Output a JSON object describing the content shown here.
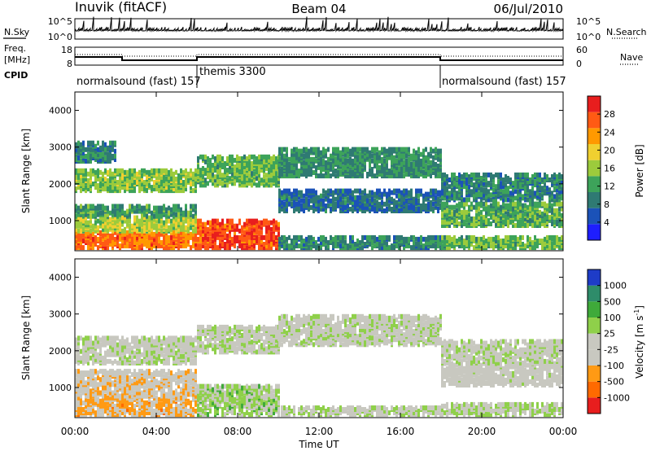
{
  "header": {
    "station": "Inuvik (fitACF)",
    "beam": "Beam 04",
    "date": "06/Jul/2010"
  },
  "top_panels": {
    "nsky_label": "N.Sky",
    "nsearch_label": "N.Search",
    "noise_ticks_left": [
      "10^5",
      "10^0"
    ],
    "noise_ticks_right": [
      "10^5",
      "10^0"
    ],
    "freq_label_line1": "Freq.",
    "freq_label_line2": "[MHz]",
    "freq_ticks": [
      "18",
      "8"
    ],
    "nave_label": "Nave",
    "nave_ticks": [
      "60",
      "0"
    ],
    "cpid_label": "CPID",
    "cpid_segments": [
      {
        "label": "normalsound (fast) 157",
        "start_hour": 0,
        "end_hour": 6
      },
      {
        "label": "themis 3300",
        "start_hour": 6,
        "end_hour": 18
      },
      {
        "label": "normalsound (fast) 157",
        "start_hour": 18,
        "end_hour": 24
      }
    ]
  },
  "chart_data": [
    {
      "type": "heatmap",
      "title": "",
      "xlabel": "Time UT",
      "ylabel": "Slant Range [km]",
      "xlim": [
        0,
        24
      ],
      "ylim": [
        180,
        4500
      ],
      "x_ticks": [
        "00:00",
        "04:00",
        "08:00",
        "12:00",
        "16:00",
        "20:00",
        "00:00"
      ],
      "y_ticks": [
        "1000",
        "2000",
        "3000",
        "4000"
      ],
      "colorbar": {
        "label": "Power [dB]",
        "ticks": [
          "28",
          "24",
          "20",
          "16",
          "12",
          "8",
          "4"
        ],
        "range": [
          0,
          30
        ]
      },
      "palette": [
        "#1e1eff",
        "#1b52b8",
        "#2f7a73",
        "#3da35a",
        "#9ccb3c",
        "#f0d030",
        "#ff9900",
        "#ff5a14",
        "#e81e1e"
      ],
      "bands": [
        {
          "x": [
            0,
            6
          ],
          "y": [
            200,
            650
          ],
          "value": 24
        },
        {
          "x": [
            0,
            6
          ],
          "y": [
            650,
            1050
          ],
          "value": 16
        },
        {
          "x": [
            0,
            6
          ],
          "y": [
            1050,
            1350
          ],
          "value": 11
        },
        {
          "x": [
            0,
            6
          ],
          "y": [
            1750,
            2300
          ],
          "value": 14
        },
        {
          "x": [
            0,
            2
          ],
          "y": [
            2550,
            3050
          ],
          "value": 9
        },
        {
          "x": [
            6,
            10
          ],
          "y": [
            200,
            950
          ],
          "value": 26
        },
        {
          "x": [
            6,
            10
          ],
          "y": [
            1900,
            2700
          ],
          "value": 13
        },
        {
          "x": [
            10,
            18
          ],
          "y": [
            200,
            500
          ],
          "value": 9
        },
        {
          "x": [
            10,
            18
          ],
          "y": [
            1200,
            1750
          ],
          "value": 7
        },
        {
          "x": [
            10,
            18
          ],
          "y": [
            2150,
            2900
          ],
          "value": 10
        },
        {
          "x": [
            18,
            24
          ],
          "y": [
            200,
            500
          ],
          "value": 13
        },
        {
          "x": [
            18,
            24
          ],
          "y": [
            800,
            1400
          ],
          "value": 12
        },
        {
          "x": [
            18,
            24
          ],
          "y": [
            1500,
            2200
          ],
          "value": 9
        }
      ]
    },
    {
      "type": "heatmap",
      "title": "",
      "xlabel": "Time UT",
      "ylabel": "Slant Range [km]",
      "xlim": [
        0,
        24
      ],
      "ylim": [
        180,
        4500
      ],
      "x_ticks": [
        "00:00",
        "04:00",
        "08:00",
        "12:00",
        "16:00",
        "20:00",
        "00:00"
      ],
      "y_ticks": [
        "1000",
        "2000",
        "3000",
        "4000"
      ],
      "colorbar": {
        "label": "Velocity [m s-1]",
        "label_main": "Velocity  [m s",
        "label_sup": "-1",
        "label_close": "]",
        "ticks": [
          "1000",
          "500",
          "100",
          "25",
          "-25",
          "-100",
          "-500",
          "-1000"
        ],
        "range": [
          -1000,
          1000
        ]
      },
      "palette": [
        "#e81e1e",
        "#ff6a00",
        "#ff9a14",
        "#c8c8c0",
        "#c8c8c0",
        "#8fd04a",
        "#3faa3a",
        "#2e8c6a",
        "#1e3cc8"
      ],
      "bands": [
        {
          "x": [
            0,
            6
          ],
          "y": [
            200,
            700
          ],
          "value": -350
        },
        {
          "x": [
            0,
            6
          ],
          "y": [
            700,
            1400
          ],
          "value": -200
        },
        {
          "x": [
            0,
            6
          ],
          "y": [
            1600,
            2300
          ],
          "value": 0
        },
        {
          "x": [
            6,
            10
          ],
          "y": [
            200,
            1000
          ],
          "value": 150
        },
        {
          "x": [
            6,
            10
          ],
          "y": [
            1900,
            2600
          ],
          "value": 0
        },
        {
          "x": [
            10,
            18
          ],
          "y": [
            200,
            400
          ],
          "value": 60
        },
        {
          "x": [
            10,
            18
          ],
          "y": [
            2100,
            2900
          ],
          "value": 0
        },
        {
          "x": [
            18,
            24
          ],
          "y": [
            200,
            500
          ],
          "value": 80
        },
        {
          "x": [
            18,
            24
          ],
          "y": [
            1000,
            1600
          ],
          "value": -90
        },
        {
          "x": [
            18,
            24
          ],
          "y": [
            1600,
            2200
          ],
          "value": 0
        }
      ]
    }
  ]
}
